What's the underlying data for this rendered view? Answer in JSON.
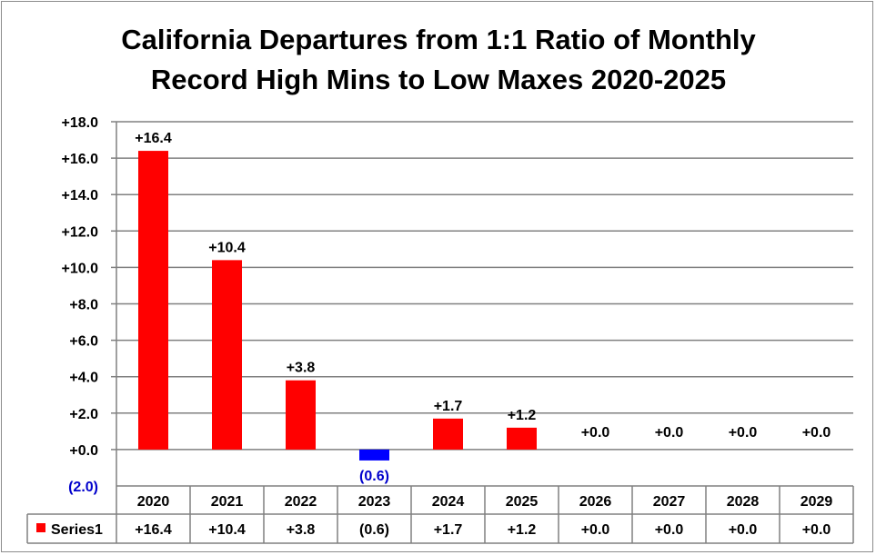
{
  "chart_data": {
    "type": "bar",
    "title_line1": "California Departures from 1:1 Ratio of Monthly",
    "title_line2": "Record High Mins to Low Maxes 2020-2025",
    "categories": [
      "2020",
      "2021",
      "2022",
      "2023",
      "2024",
      "2025",
      "2026",
      "2027",
      "2028",
      "2029"
    ],
    "series": [
      {
        "name": "Series1",
        "values": [
          16.4,
          10.4,
          3.8,
          -0.6,
          1.7,
          1.2,
          0.0,
          0.0,
          0.0,
          0.0
        ],
        "labels": [
          "+16.4",
          "+10.4",
          "+3.8",
          "(0.6)",
          "+1.7",
          "+1.2",
          "+0.0",
          "+0.0",
          "+0.0",
          "+0.0"
        ]
      }
    ],
    "ylim": [
      -2.0,
      18.0
    ],
    "yticks": [
      {
        "value": 18,
        "label": "+18.0"
      },
      {
        "value": 16,
        "label": "+16.0"
      },
      {
        "value": 14,
        "label": "+14.0"
      },
      {
        "value": 12,
        "label": "+12.0"
      },
      {
        "value": 10,
        "label": "+10.0"
      },
      {
        "value": 8,
        "label": "+8.0"
      },
      {
        "value": 6,
        "label": "+6.0"
      },
      {
        "value": 4,
        "label": "+4.0"
      },
      {
        "value": 2,
        "label": "+2.0"
      },
      {
        "value": 0,
        "label": "+0.0"
      },
      {
        "value": -2,
        "label": "(2.0)"
      }
    ],
    "grid": true,
    "data_table": true,
    "colors": {
      "positive": "#ff0000",
      "negative": "#0000ff",
      "negative_label": "#0000cc",
      "grid": "#808080",
      "text": "#000000"
    }
  }
}
